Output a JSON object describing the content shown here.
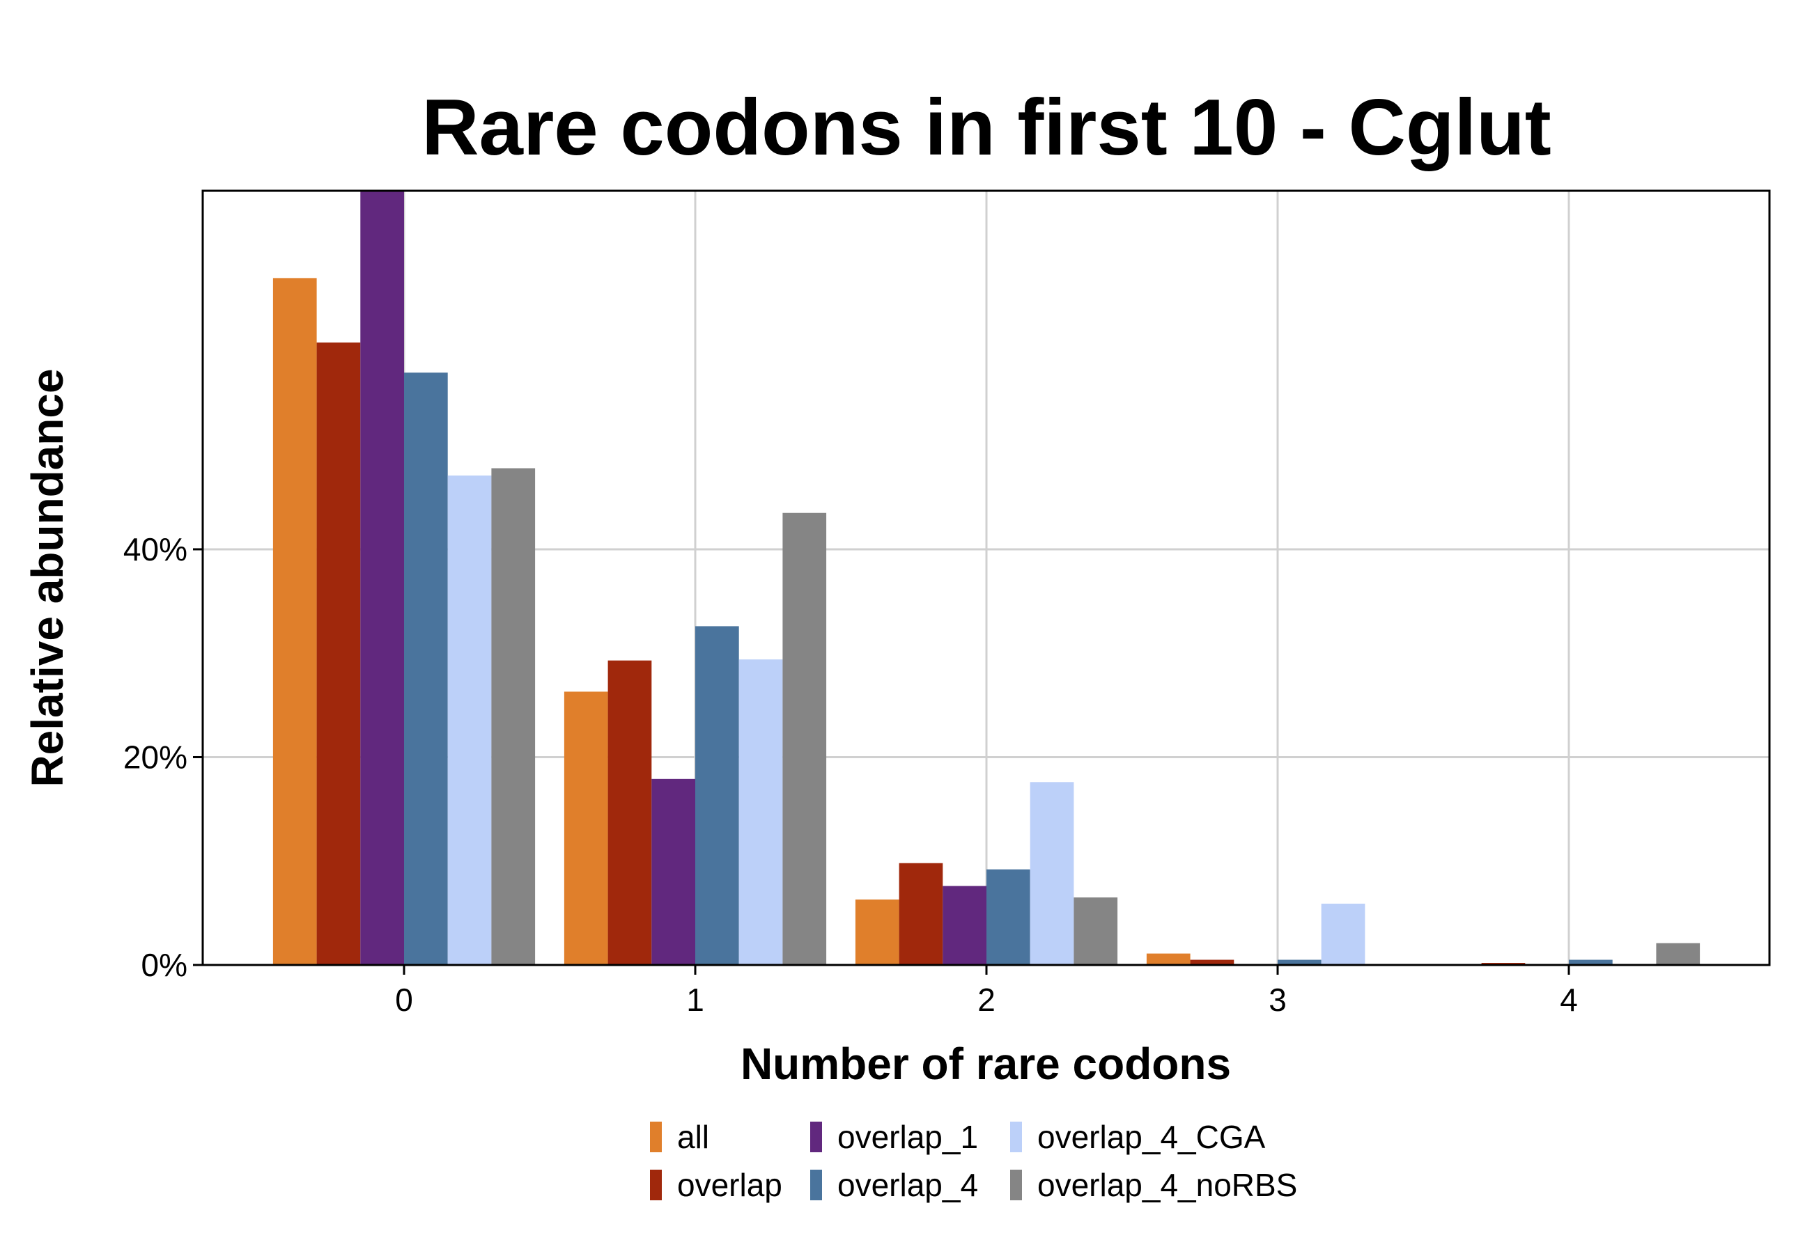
{
  "chart_data": {
    "type": "bar",
    "title": "Rare codons in first 10 - Cglut",
    "xlabel": "Number of rare codons",
    "ylabel": "Relative abundance",
    "categories": [
      "0",
      "1",
      "2",
      "3",
      "4"
    ],
    "y_ticks": [
      0,
      20,
      40
    ],
    "y_tick_labels": [
      "0%",
      "20%",
      "40%"
    ],
    "ylim": [
      0,
      74.5
    ],
    "grid": true,
    "legend_position": "bottom",
    "series": [
      {
        "name": "all",
        "color": "#e07f2b",
        "values": [
          66.1,
          26.3,
          6.3,
          1.1,
          0.1
        ]
      },
      {
        "name": "overlap",
        "color": "#a0280c",
        "values": [
          59.9,
          29.3,
          9.8,
          0.5,
          0.2
        ]
      },
      {
        "name": "overlap_1",
        "color": "#61287e",
        "values": [
          74.5,
          17.9,
          7.6,
          0.0,
          0.0
        ]
      },
      {
        "name": "overlap_4",
        "color": "#4a749d",
        "values": [
          57.0,
          32.6,
          9.2,
          0.5,
          0.5
        ]
      },
      {
        "name": "overlap_4_CGA",
        "color": "#bcd0f9",
        "values": [
          47.1,
          29.4,
          17.6,
          5.9,
          0.0
        ]
      },
      {
        "name": "overlap_4_noRBS",
        "color": "#858585",
        "values": [
          47.8,
          43.5,
          6.5,
          0.0,
          2.1
        ]
      }
    ]
  }
}
